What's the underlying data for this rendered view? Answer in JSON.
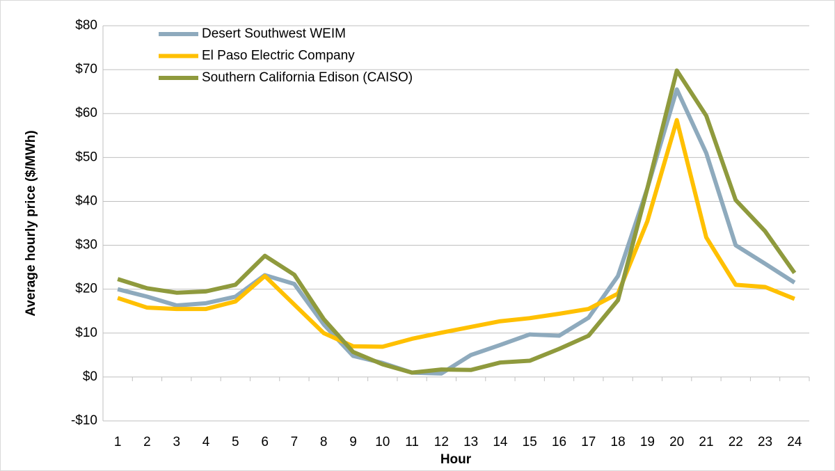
{
  "chart_data": {
    "type": "line",
    "x_label": "Hour",
    "y_label": "Average hourly price ($/MWh)",
    "categories": [
      "1",
      "2",
      "3",
      "4",
      "5",
      "6",
      "7",
      "8",
      "9",
      "10",
      "11",
      "12",
      "13",
      "14",
      "15",
      "16",
      "17",
      "18",
      "19",
      "20",
      "21",
      "22",
      "23",
      "24"
    ],
    "series": [
      {
        "name": "Desert Southwest WEIM",
        "color": "#8eaabd",
        "values": [
          20,
          18.3,
          16.3,
          16.8,
          18.3,
          23.2,
          21.2,
          12,
          4.8,
          3.2,
          1,
          0.8,
          5,
          7.3,
          9.7,
          9.4,
          13.5,
          23,
          43,
          65.5,
          51,
          30,
          25.8,
          21.5
        ]
      },
      {
        "name": "El Paso Electric Company",
        "color": "#ffc000",
        "values": [
          18,
          15.8,
          15.5,
          15.5,
          17.2,
          23,
          16.5,
          10,
          7,
          6.9,
          8.7,
          10.1,
          11.4,
          12.7,
          13.4,
          14.4,
          15.5,
          19,
          35.5,
          58.5,
          31.8,
          21,
          20.5,
          17.8
        ]
      },
      {
        "name": "Southern California Edison (CAISO)",
        "color": "#8f9a3d",
        "values": [
          22.3,
          20.2,
          19.2,
          19.5,
          21,
          27.6,
          23.3,
          13.2,
          5.7,
          2.9,
          1,
          1.7,
          1.6,
          3.3,
          3.7,
          6.4,
          9.4,
          17.5,
          43,
          69.8,
          59.5,
          40.3,
          33.2,
          23.7
        ]
      }
    ],
    "ylim": [
      -10,
      80
    ],
    "yticks": [
      {
        "value": -10,
        "label": "-$10"
      },
      {
        "value": 0,
        "label": "$0"
      },
      {
        "value": 10,
        "label": "$10"
      },
      {
        "value": 20,
        "label": "$20"
      },
      {
        "value": 30,
        "label": "$30"
      },
      {
        "value": 40,
        "label": "$40"
      },
      {
        "value": 50,
        "label": "$50"
      },
      {
        "value": 60,
        "label": "$60"
      },
      {
        "value": 70,
        "label": "$70"
      },
      {
        "value": 80,
        "label": "$80"
      }
    ],
    "grid": true,
    "legend": "top-left"
  }
}
